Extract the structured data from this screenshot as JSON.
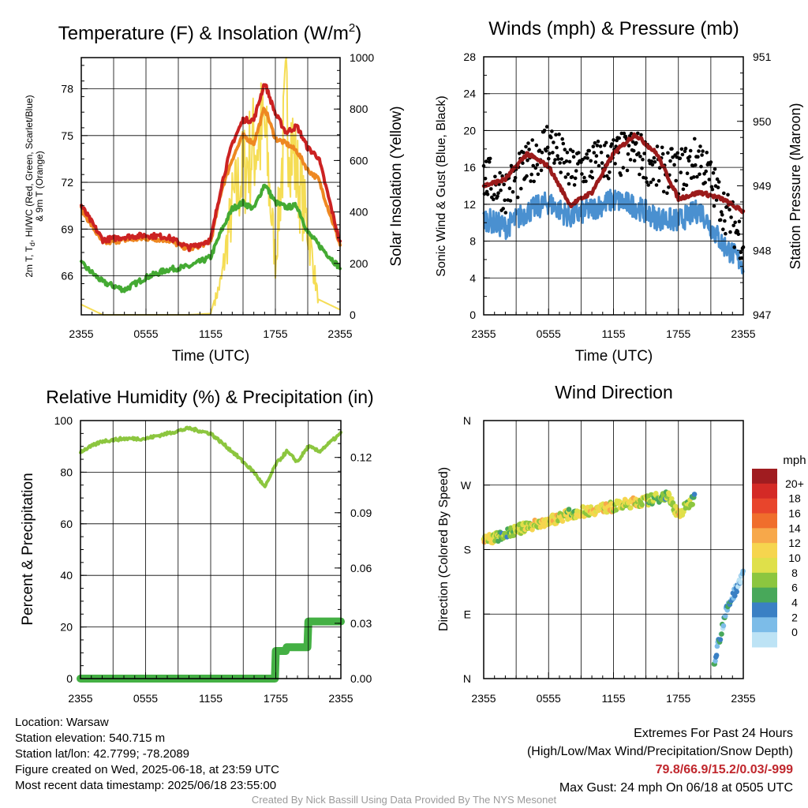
{
  "colors": {
    "temp": "#cc2222",
    "dewpoint": "#44aa33",
    "heat_index": "#dd2211",
    "temp9m": "#ee8822",
    "solar": "#f5dd55",
    "wind": "#4a90d0",
    "gust": "#000000",
    "pressure": "#9b1b1b",
    "rh": "#8cc63f",
    "precip": "#44b044"
  },
  "panels": {
    "temperature": {
      "title": "Temperature (F) & Insolation (W/m",
      "title_sup": "2",
      "title_end": ")",
      "ylabel_left_1": "2m T, T",
      "ylabel_left_sub": "d",
      "ylabel_left_2": ", HI/WC (Red, Green, Scarlet/Blue)",
      "ylabel_left_3": "& 9m T (Orange)",
      "ylabel_right": "Solar Insolation (Yellow)",
      "xlabel": "Time (UTC)",
      "left_ticks": [
        "66",
        "69",
        "72",
        "75",
        "78"
      ],
      "right_ticks": [
        "0",
        "200",
        "400",
        "600",
        "800",
        "1000"
      ]
    },
    "winds": {
      "title": "Winds (mph) & Pressure (mb)",
      "ylabel_left": "Sonic Wind & Gust (Blue, Black)",
      "ylabel_right": "Station Pressure (Maroon)",
      "xlabel": "Time (UTC)",
      "left_ticks": [
        "0",
        "4",
        "8",
        "12",
        "16",
        "20",
        "24",
        "28"
      ],
      "right_ticks": [
        "947",
        "948",
        "949",
        "950",
        "951"
      ]
    },
    "humidity": {
      "title": "Relative Humidity (%) & Precipitation (in)",
      "ylabel_left": "Percent & Precipitation",
      "left_ticks": [
        "0",
        "20",
        "40",
        "60",
        "80",
        "100"
      ],
      "right_ticks": [
        "0.00",
        "0.03",
        "0.06",
        "0.09",
        "0.12"
      ]
    },
    "direction": {
      "title": "Wind Direction",
      "ylabel_left": "Direction (Colored By Speed)",
      "left_ticks": [
        "N",
        "E",
        "S",
        "W",
        "N"
      ],
      "legend_title": "mph",
      "legend_labels": [
        "20+",
        "18",
        "16",
        "14",
        "12",
        "10",
        "8",
        "6",
        "4",
        "2",
        "0"
      ],
      "legend_colors": [
        "#a01c20",
        "#d42a26",
        "#e8452c",
        "#f06e2c",
        "#f7a84a",
        "#f6d54e",
        "#dfe04a",
        "#8cc63f",
        "#48a85a",
        "#3a80c4",
        "#7cbce8",
        "#bde3f5"
      ]
    }
  },
  "x_ticks": [
    "2355",
    "0555",
    "1155",
    "1755",
    "2355"
  ],
  "chart_data": [
    {
      "type": "line",
      "title": "Temperature (F) & Insolation (W/m2)",
      "xlabel": "Time (UTC)",
      "x": [
        "2355",
        "0155",
        "0355",
        "0555",
        "0755",
        "0955",
        "1155",
        "1255",
        "1355",
        "1455",
        "1555",
        "1655",
        "1755",
        "1855",
        "1955",
        "2055",
        "2155",
        "2355"
      ],
      "ylim_left": [
        63.5,
        80
      ],
      "ylim_right": [
        0,
        1000
      ],
      "series": [
        {
          "name": "2m T (Red)",
          "values": [
            70.5,
            68.3,
            68.5,
            68.6,
            68.5,
            67.8,
            68.3,
            71.8,
            74.5,
            76.0,
            76.0,
            78.4,
            76.4,
            75.2,
            75.6,
            74.2,
            73.6,
            68.1
          ]
        },
        {
          "name": "Td (Green)",
          "values": [
            66.8,
            65.6,
            65.1,
            65.9,
            66.4,
            66.6,
            67.2,
            68.9,
            70.3,
            70.7,
            70.3,
            71.9,
            70.7,
            70.4,
            70.5,
            68.8,
            68.0,
            66.5
          ]
        },
        {
          "name": "9m T (Orange)",
          "values": [
            70.3,
            68.1,
            68.3,
            68.4,
            68.3,
            67.7,
            68.2,
            71.5,
            73.5,
            75.0,
            74.5,
            76.8,
            74.8,
            74.5,
            74.0,
            72.8,
            72.2,
            68.0
          ]
        },
        {
          "name": "Solar Insolation (Yellow)",
          "values": [
            40,
            0,
            0,
            0,
            0,
            0,
            5,
            160,
            500,
            650,
            770,
            850,
            240,
            960,
            640,
            400,
            60,
            20
          ]
        }
      ]
    },
    {
      "type": "scatter",
      "title": "Winds (mph) & Pressure (mb)",
      "xlabel": "Time (UTC)",
      "x": [
        "2355",
        "0155",
        "0355",
        "0555",
        "0755",
        "0955",
        "1155",
        "1355",
        "1555",
        "1755",
        "1955",
        "2155",
        "2355"
      ],
      "ylim_left": [
        0,
        28
      ],
      "ylim_right": [
        947,
        951
      ],
      "series": [
        {
          "name": "Sonic Wind (Blue)",
          "values": [
            10.5,
            9.5,
            11.2,
            12.2,
            10.6,
            11.5,
            12.5,
            11.8,
            10.5,
            10.2,
            11.4,
            7.8,
            5.5
          ]
        },
        {
          "name": "Gust (Black)",
          "values": [
            15.0,
            13.5,
            16.0,
            19.0,
            15.5,
            16.5,
            17.0,
            17.8,
            15.8,
            15.5,
            17.2,
            12.0,
            8.0
          ]
        },
        {
          "name": "Station Pressure (Maroon)",
          "values": [
            949.0,
            949.1,
            949.5,
            949.3,
            948.7,
            948.9,
            949.5,
            949.8,
            949.5,
            948.8,
            948.9,
            948.8,
            948.6
          ]
        }
      ]
    },
    {
      "type": "line",
      "title": "Relative Humidity (%) & Precipitation (in)",
      "x": [
        "2355",
        "0155",
        "0355",
        "0555",
        "0755",
        "0955",
        "1155",
        "1355",
        "1555",
        "1655",
        "1755",
        "1855",
        "1955",
        "2055",
        "2155",
        "2355"
      ],
      "ylim_left": [
        0,
        100
      ],
      "ylim_right": [
        0,
        0.14
      ],
      "series": [
        {
          "name": "Relative Humidity",
          "values": [
            88,
            92,
            93,
            93,
            95,
            97,
            95,
            88,
            80,
            74,
            83,
            88,
            84,
            90,
            88,
            95
          ]
        },
        {
          "name": "Precipitation",
          "values": [
            0,
            0,
            0,
            0,
            0,
            0,
            0,
            0,
            0,
            0,
            0.015,
            0.017,
            0.017,
            0.031,
            0.031,
            0.031
          ]
        }
      ]
    },
    {
      "type": "scatter",
      "title": "Wind Direction",
      "x": [
        "2355",
        "0155",
        "0355",
        "0555",
        "0755",
        "0955",
        "1155",
        "1355",
        "1455",
        "1655",
        "1755",
        "1915",
        "2015",
        "2055",
        "2215",
        "2355"
      ],
      "y_labels": [
        "N",
        "E",
        "S",
        "W",
        "N"
      ],
      "series": [
        {
          "name": "Direction (deg)",
          "values": [
            192,
            202,
            212,
            220,
            230,
            235,
            240,
            246,
            248,
            256,
            228,
            250,
            340,
            5,
            90,
            150
          ]
        },
        {
          "name": "Speed (mph)",
          "values": [
            12,
            8,
            12,
            12,
            10,
            12,
            12,
            12,
            10,
            8,
            12,
            8,
            4,
            6,
            4,
            3
          ]
        }
      ]
    }
  ],
  "footer": {
    "location": "Location: Warsaw",
    "elevation": "Station elevation: 540.715 m",
    "latlon": "Station lat/lon: 42.7799; -78.2089",
    "created": "Figure created on Wed, 2025-06-18, at 23:59 UTC",
    "recent": "Most recent data timestamp: 2025/06/18 23:55:00",
    "extremes_title": "Extremes For Past 24 Hours",
    "extremes_desc": "(High/Low/Max Wind/Precipitation/Snow Depth)",
    "extremes_values": "79.8/66.9/15.2/0.03/-999",
    "max_gust": "Max Gust: 24 mph On 06/18 at 0505 UTC",
    "credit": "Created By Nick Bassill Using Data Provided By The NYS Mesonet"
  }
}
